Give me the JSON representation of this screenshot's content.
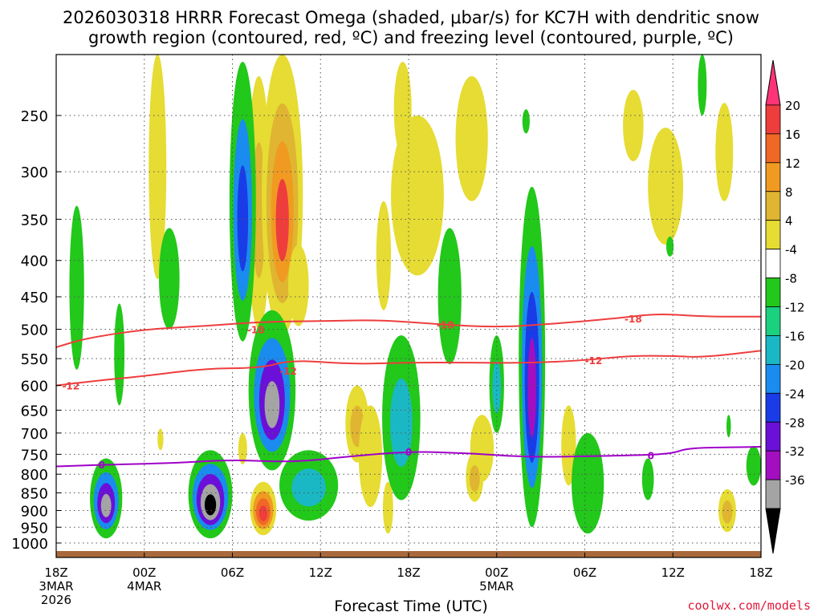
{
  "chart_data": {
    "type": "heatmap",
    "title_line1": "2026030318 HRRR Forecast Omega (shaded, μbar/s) for KC7H with dendritic snow",
    "title_line2": "growth region (contoured, red, ºC) and freezing level (contoured, purple, ºC)",
    "xlabel": "Forecast Time (UTC)",
    "credit": "coolwx.com/models",
    "pressure_ticks": [
      250,
      300,
      350,
      400,
      450,
      500,
      550,
      600,
      650,
      700,
      750,
      800,
      850,
      900,
      950,
      1000
    ],
    "ylim": [
      1030,
      200
    ],
    "xlim_hours": [
      0,
      48
    ],
    "time_ticks": [
      {
        "hour": 0,
        "label": "18Z",
        "sub1": "3MAR",
        "sub2": "2026"
      },
      {
        "hour": 6,
        "label": "00Z",
        "sub1": "4MAR",
        "sub2": ""
      },
      {
        "hour": 12,
        "label": "06Z",
        "sub1": "",
        "sub2": ""
      },
      {
        "hour": 18,
        "label": "12Z",
        "sub1": "",
        "sub2": ""
      },
      {
        "hour": 24,
        "label": "18Z",
        "sub1": "",
        "sub2": ""
      },
      {
        "hour": 30,
        "label": "00Z",
        "sub1": "5MAR",
        "sub2": ""
      },
      {
        "hour": 36,
        "label": "06Z",
        "sub1": "",
        "sub2": ""
      },
      {
        "hour": 42,
        "label": "12Z",
        "sub1": "",
        "sub2": ""
      },
      {
        "hour": 48,
        "label": "18Z",
        "sub1": "",
        "sub2": ""
      }
    ],
    "colorbar": {
      "labels": [
        "20",
        "16",
        "12",
        "8",
        "4",
        "-4",
        "-8",
        "-12",
        "-16",
        "-20",
        "-24",
        "-28",
        "-32",
        "-36"
      ],
      "colors": [
        "#ff3378",
        "#ee3d3d",
        "#f06826",
        "#f09a22",
        "#dfb531",
        "#e6dc33",
        "#ffffff",
        "#22c81a",
        "#1bd07e",
        "#1ab8c4",
        "#1a8cf0",
        "#1a3ce6",
        "#6a10d8",
        "#a30fc0",
        "#a4a4a4",
        "#000000"
      ]
    },
    "contours": [
      {
        "name": "-18C",
        "label": "-18",
        "color": "#ee3d3d",
        "points": [
          [
            0,
            530
          ],
          [
            2,
            515
          ],
          [
            6,
            500
          ],
          [
            10,
            495
          ],
          [
            14,
            488
          ],
          [
            18,
            487
          ],
          [
            22,
            485
          ],
          [
            26,
            492
          ],
          [
            30,
            497
          ],
          [
            34,
            491
          ],
          [
            38,
            483
          ],
          [
            41,
            475
          ],
          [
            44,
            480
          ],
          [
            48,
            480
          ]
        ]
      },
      {
        "name": "-12C",
        "label": "-12",
        "color": "#ee3d3d",
        "points": [
          [
            0,
            600
          ],
          [
            3,
            590
          ],
          [
            6,
            582
          ],
          [
            10,
            568
          ],
          [
            14,
            567
          ],
          [
            16,
            552
          ],
          [
            20,
            560
          ],
          [
            24,
            557
          ],
          [
            28,
            557
          ],
          [
            32,
            558
          ],
          [
            36,
            553
          ],
          [
            39,
            545
          ],
          [
            42,
            545
          ],
          [
            44,
            548
          ],
          [
            48,
            536
          ]
        ]
      },
      {
        "name": "0C freezing level",
        "label": "0",
        "color": "#a000c8",
        "points": [
          [
            0,
            780
          ],
          [
            4,
            775
          ],
          [
            8,
            772
          ],
          [
            12,
            763
          ],
          [
            16,
            770
          ],
          [
            20,
            755
          ],
          [
            24,
            743
          ],
          [
            28,
            747
          ],
          [
            32,
            757
          ],
          [
            36,
            755
          ],
          [
            40,
            752
          ],
          [
            42,
            748
          ],
          [
            43,
            735
          ],
          [
            46,
            733
          ],
          [
            48,
            732
          ]
        ]
      }
    ],
    "contour_labels": [
      {
        "text": "-12",
        "hour": 1.0,
        "p": 600
      },
      {
        "text": "-18",
        "hour": 13.6,
        "p": 500
      },
      {
        "text": "-12",
        "hour": 15.8,
        "p": 572
      },
      {
        "text": "-18",
        "hour": 26.5,
        "p": 492
      },
      {
        "text": "-12",
        "hour": 36.6,
        "p": 553
      },
      {
        "text": "-18",
        "hour": 39.3,
        "p": 483
      },
      {
        "text": "0",
        "hour": 3.1,
        "p": 775
      },
      {
        "text": "0",
        "hour": 24.0,
        "p": 743
      },
      {
        "text": "0",
        "hour": 40.5,
        "p": 752
      }
    ],
    "omega_cells": [
      {
        "hour": 1.4,
        "p_top": 335,
        "p_bot": 570,
        "width_h": 1.0,
        "values": [
          -6
        ]
      },
      {
        "hour": 3.4,
        "p_top": 760,
        "p_bot": 985,
        "width_h": 2.2,
        "values": [
          -6,
          -12,
          -20,
          -30
        ]
      },
      {
        "hour": 4.3,
        "p_top": 460,
        "p_bot": 640,
        "width_h": 0.7,
        "values": [
          -6
        ]
      },
      {
        "hour": 7.7,
        "p_top": 360,
        "p_bot": 500,
        "width_h": 1.4,
        "values": [
          -6
        ]
      },
      {
        "hour": 10.5,
        "p_top": 740,
        "p_bot": 985,
        "width_h": 3.0,
        "values": [
          -6,
          -12,
          -20,
          -30,
          -35
        ]
      },
      {
        "hour": 12.7,
        "p_top": 210,
        "p_bot": 520,
        "width_h": 1.8,
        "values": [
          -6,
          -12,
          -18
        ]
      },
      {
        "hour": 14.7,
        "p_top": 470,
        "p_bot": 790,
        "width_h": 3.2,
        "values": [
          -6,
          -12,
          -20,
          -28
        ]
      },
      {
        "hour": 17.2,
        "p_top": 740,
        "p_bot": 930,
        "width_h": 4.0,
        "values": [
          -6,
          -10
        ]
      },
      {
        "hour": 23.5,
        "p_top": 510,
        "p_bot": 870,
        "width_h": 2.6,
        "values": [
          -6,
          -10
        ]
      },
      {
        "hour": 26.8,
        "p_top": 360,
        "p_bot": 560,
        "width_h": 1.6,
        "values": [
          -6
        ]
      },
      {
        "hour": 30.0,
        "p_top": 510,
        "p_bot": 700,
        "width_h": 1.0,
        "values": [
          -6,
          -10
        ]
      },
      {
        "hour": 32.4,
        "p_top": 315,
        "p_bot": 950,
        "width_h": 1.8,
        "values": [
          -6,
          -12,
          -18,
          -24
        ]
      },
      {
        "hour": 36.2,
        "p_top": 700,
        "p_bot": 970,
        "width_h": 2.2,
        "values": [
          -6
        ]
      },
      {
        "hour": 40.3,
        "p_top": 760,
        "p_bot": 870,
        "width_h": 0.8,
        "values": [
          -6
        ]
      },
      {
        "hour": 44.0,
        "p_top": 200,
        "p_bot": 250,
        "width_h": 0.6,
        "values": [
          -6
        ]
      },
      {
        "hour": 47.5,
        "p_top": 730,
        "p_bot": 830,
        "width_h": 1.0,
        "values": [
          -6
        ]
      },
      {
        "hour": 32.0,
        "p_top": 245,
        "p_bot": 265,
        "width_h": 0.5,
        "values": [
          -6
        ]
      },
      {
        "hour": 41.8,
        "p_top": 370,
        "p_bot": 395,
        "width_h": 0.5,
        "values": [
          -6
        ]
      },
      {
        "hour": 45.8,
        "p_top": 660,
        "p_bot": 710,
        "width_h": 0.3,
        "values": [
          -6
        ]
      }
    ],
    "omega_pos_cells": [
      {
        "hour": 6.9,
        "p_top": 200,
        "p_bot": 425,
        "width_h": 1.2,
        "values": [
          6
        ]
      },
      {
        "hour": 12.7,
        "p_top": 700,
        "p_bot": 775,
        "width_h": 0.6,
        "values": [
          6
        ]
      },
      {
        "hour": 13.8,
        "p_top": 220,
        "p_bot": 500,
        "width_h": 1.6,
        "values": [
          6,
          9
        ]
      },
      {
        "hour": 15.4,
        "p_top": 200,
        "p_bot": 510,
        "width_h": 2.8,
        "values": [
          6,
          9,
          12,
          18
        ]
      },
      {
        "hour": 16.5,
        "p_top": 380,
        "p_bot": 495,
        "width_h": 1.4,
        "values": [
          6
        ]
      },
      {
        "hour": 14.1,
        "p_top": 820,
        "p_bot": 975,
        "width_h": 1.8,
        "values": [
          6,
          10,
          14,
          18
        ]
      },
      {
        "hour": 20.5,
        "p_top": 600,
        "p_bot": 770,
        "width_h": 1.6,
        "values": [
          6,
          9
        ]
      },
      {
        "hour": 21.4,
        "p_top": 640,
        "p_bot": 890,
        "width_h": 1.6,
        "values": [
          6
        ]
      },
      {
        "hour": 23.6,
        "p_top": 210,
        "p_bot": 285,
        "width_h": 1.2,
        "values": [
          6
        ]
      },
      {
        "hour": 24.6,
        "p_top": 250,
        "p_bot": 420,
        "width_h": 3.6,
        "values": [
          6
        ]
      },
      {
        "hour": 22.6,
        "p_top": 820,
        "p_bot": 970,
        "width_h": 0.7,
        "values": [
          6
        ]
      },
      {
        "hour": 28.3,
        "p_top": 220,
        "p_bot": 330,
        "width_h": 2.2,
        "values": [
          6
        ]
      },
      {
        "hour": 29.0,
        "p_top": 660,
        "p_bot": 820,
        "width_h": 1.6,
        "values": [
          6
        ]
      },
      {
        "hour": 28.5,
        "p_top": 745,
        "p_bot": 875,
        "width_h": 1.2,
        "values": [
          6,
          9
        ]
      },
      {
        "hour": 34.9,
        "p_top": 640,
        "p_bot": 830,
        "width_h": 1.0,
        "values": [
          6
        ]
      },
      {
        "hour": 39.3,
        "p_top": 230,
        "p_bot": 290,
        "width_h": 1.4,
        "values": [
          6
        ]
      },
      {
        "hour": 41.5,
        "p_top": 260,
        "p_bot": 380,
        "width_h": 2.4,
        "values": [
          6
        ]
      },
      {
        "hour": 45.5,
        "p_top": 240,
        "p_bot": 330,
        "width_h": 1.2,
        "values": [
          6
        ]
      },
      {
        "hour": 45.7,
        "p_top": 840,
        "p_bot": 965,
        "width_h": 1.2,
        "values": [
          6,
          9
        ]
      },
      {
        "hour": 22.3,
        "p_top": 330,
        "p_bot": 470,
        "width_h": 1.0,
        "values": [
          6
        ]
      },
      {
        "hour": 7.1,
        "p_top": 690,
        "p_bot": 740,
        "width_h": 0.4,
        "values": [
          6
        ]
      }
    ],
    "surface_color": "#a86a3c"
  }
}
